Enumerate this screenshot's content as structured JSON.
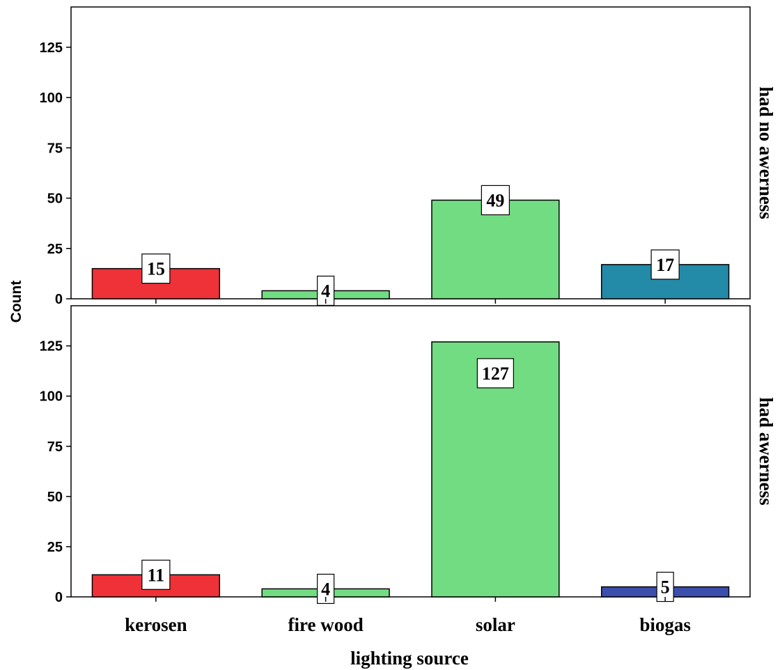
{
  "chart_data": {
    "type": "bar",
    "xlabel": "lighting source",
    "ylabel": "Count",
    "categories": [
      "kerosen",
      "fire wood",
      "solar",
      "biogas"
    ],
    "ylim": [
      0,
      145
    ],
    "yticks": [
      0,
      25,
      50,
      75,
      100,
      125
    ],
    "grid": false,
    "panels": [
      {
        "name": "had no awerness",
        "values": [
          15,
          4,
          49,
          17
        ],
        "colors": [
          "#ee3237",
          "#72dc82",
          "#72dc82",
          "#238aa8"
        ]
      },
      {
        "name": "had awerness",
        "values": [
          11,
          4,
          127,
          5
        ],
        "colors": [
          "#ee3237",
          "#72dc82",
          "#72dc82",
          "#3b4eae"
        ]
      }
    ]
  }
}
